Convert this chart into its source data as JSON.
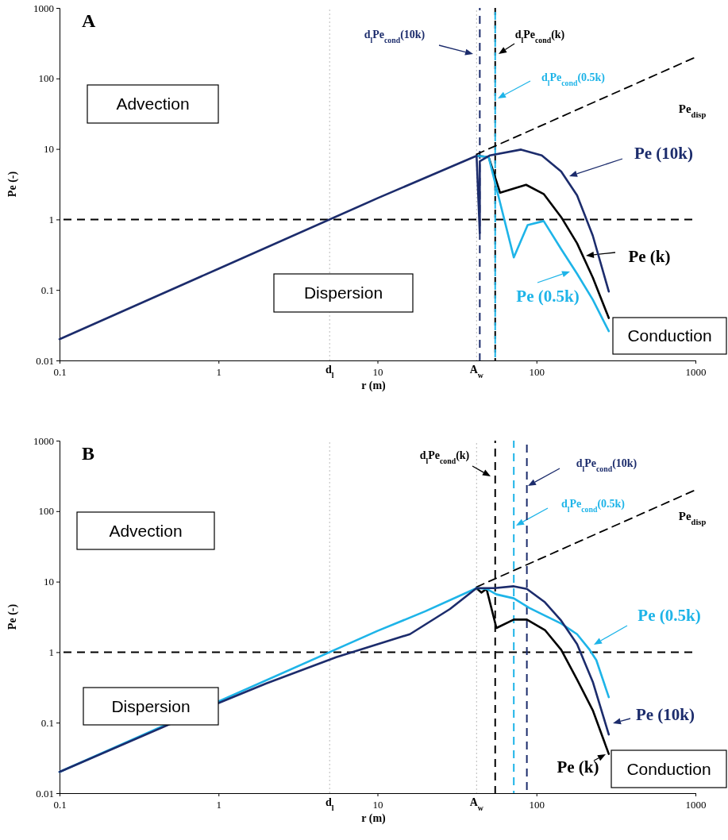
{
  "chart_data": [
    {
      "type": "line",
      "title": "A",
      "xlabel": "r (m)",
      "ylabel": "Pe (-)",
      "log": "xy",
      "xlim": [
        0.1,
        1000
      ],
      "ylim": [
        0.01,
        1000
      ],
      "xticks": [
        0.1,
        1,
        10,
        100,
        1000
      ],
      "yticks": [
        0.01,
        0.1,
        1,
        10,
        100,
        1000
      ],
      "series": [
        {
          "name": "Pe$_{disp}$",
          "color": "#000000",
          "line_style": "dashed",
          "x": [
            42,
            1000
          ],
          "values": [
            8.4,
            200
          ]
        },
        {
          "name": "Pe (k)",
          "color": "#000000",
          "x": [
            42,
            50,
            59,
            86,
            111,
            143,
            180,
            226,
            285
          ],
          "values": [
            8,
            7.7,
            2.4,
            3.1,
            2.3,
            1.08,
            0.46,
            0.15,
            0.04
          ]
        },
        {
          "name": "Pe (0.5k)",
          "color": "#1eb4e8",
          "x": [
            42,
            50,
            72,
            88,
            111,
            143,
            180,
            226,
            285
          ],
          "values": [
            8,
            7.7,
            0.29,
            0.83,
            0.95,
            0.38,
            0.17,
            0.073,
            0.026
          ]
        },
        {
          "name": "Pe (10k)",
          "color": "#1c2c6c",
          "x": [
            0.1,
            1,
            10,
            42,
            44,
            44,
            51,
            80,
            108,
            143,
            180,
            226,
            285
          ],
          "values": [
            0.02,
            0.2,
            2,
            8,
            0.64,
            6.7,
            8.1,
            9.8,
            8.1,
            4.8,
            2.2,
            0.59,
            0.095
          ]
        }
      ],
      "ref_lines": [
        {
          "axis": "x",
          "value": 5,
          "label": "d$_{l}$",
          "color": "#bbbbbb",
          "line_style": "dotted"
        },
        {
          "axis": "x",
          "value": 42,
          "label": "A$_{w}$",
          "color": "#bbbbbb",
          "line_style": "dotted"
        },
        {
          "axis": "y",
          "value": 1,
          "color": "#000000",
          "line_style": "dashed"
        },
        {
          "axis": "x",
          "value": 44,
          "label": "d$_{l}$Pe$_{cond}$(10k)",
          "color": "#1c2c6c",
          "line_style": "dashed"
        },
        {
          "axis": "x",
          "value": 55,
          "label": "d$_{l}$Pe$_{cond}$(k)",
          "color": "#000000",
          "line_style": "dashed"
        },
        {
          "axis": "x",
          "value": 55,
          "label": "d$_{l}$Pe$_{cond}$(0.5k)",
          "color": "#1eb4e8",
          "line_style": "dashed"
        }
      ],
      "annotations": [
        "Advection",
        "Dispersion",
        "Conduction"
      ]
    },
    {
      "type": "line",
      "title": "B",
      "xlabel": "r (m)",
      "ylabel": "Pe (-)",
      "log": "xy",
      "xlim": [
        0.1,
        1000
      ],
      "ylim": [
        0.01,
        1000
      ],
      "xticks": [
        0.1,
        1,
        10,
        100,
        1000
      ],
      "yticks": [
        0.01,
        0.1,
        1,
        10,
        100,
        1000
      ],
      "series": [
        {
          "name": "Pe$_{disp}$",
          "color": "#000000",
          "line_style": "dashed",
          "x": [
            42,
            1000
          ],
          "values": [
            8.4,
            200
          ]
        },
        {
          "name": "Pe (k)",
          "color": "#000000",
          "x": [
            42,
            45,
            48.5,
            56,
            72,
            87,
            113,
            143,
            180,
            226,
            285
          ],
          "values": [
            8.1,
            7,
            7.9,
            2.2,
            2.9,
            2.9,
            2.06,
            1.08,
            0.41,
            0.15,
            0.036
          ]
        },
        {
          "name": "Pe (0.5k)",
          "color": "#1eb4e8",
          "x": [
            0.1,
            1,
            10,
            20,
            42,
            48.5,
            56,
            72,
            90,
            113,
            143,
            180,
            216,
            238,
            285
          ],
          "values": [
            0.02,
            0.2,
            2,
            3.8,
            8.1,
            7.9,
            6.6,
            5.8,
            4.25,
            3.3,
            2.54,
            1.8,
            1.08,
            0.77,
            0.23
          ]
        },
        {
          "name": "Pe (10k)",
          "color": "#1c2c6c",
          "x": [
            0.1,
            1,
            2,
            5.5,
            16,
            28.6,
            42,
            54.5,
            72,
            87,
            113,
            143,
            180,
            226,
            285
          ],
          "values": [
            0.02,
            0.19,
            0.36,
            0.85,
            1.8,
            4.1,
            8.1,
            8.1,
            8.6,
            7.9,
            5.1,
            2.8,
            1.3,
            0.38,
            0.068
          ]
        }
      ],
      "ref_lines": [
        {
          "axis": "x",
          "value": 5,
          "label": "d$_{l}$",
          "color": "#bbbbbb",
          "line_style": "dotted"
        },
        {
          "axis": "x",
          "value": 42,
          "label": "A$_{w}$",
          "color": "#bbbbbb",
          "line_style": "dotted"
        },
        {
          "axis": "y",
          "value": 1,
          "color": "#000000",
          "line_style": "dashed"
        },
        {
          "axis": "x",
          "value": 55,
          "label": "d$_{l}$Pe$_{cond}$(k)",
          "color": "#000000",
          "line_style": "dashed"
        },
        {
          "axis": "x",
          "value": 72,
          "label": "d$_{l}$Pe$_{cond}$(0.5k)",
          "color": "#1eb4e8",
          "line_style": "dashed"
        },
        {
          "axis": "x",
          "value": 87,
          "label": "d$_{l}$Pe$_{cond}$(10k)",
          "color": "#1c2c6c",
          "line_style": "dashed"
        }
      ],
      "annotations": [
        "Advection",
        "Dispersion",
        "Conduction"
      ]
    }
  ]
}
